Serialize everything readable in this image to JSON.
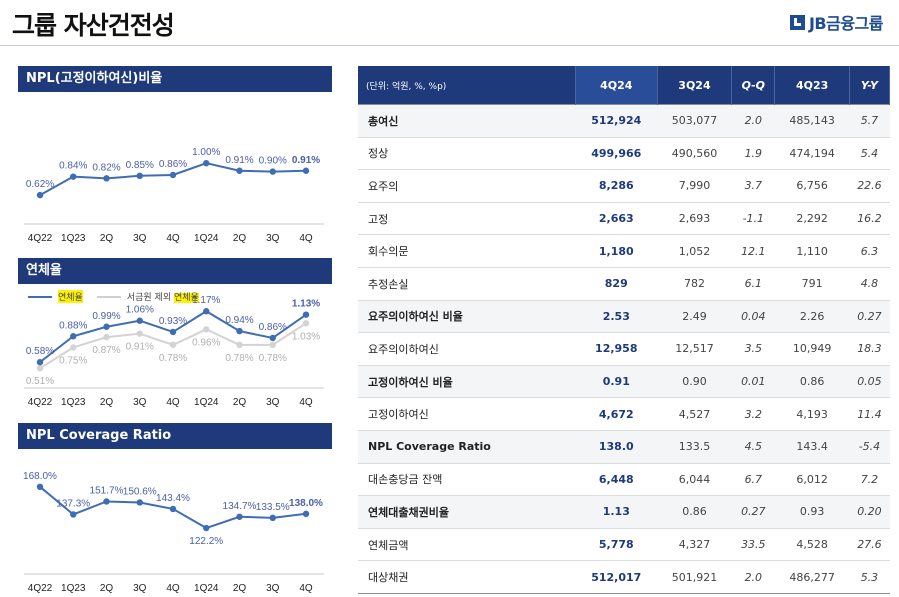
{
  "page": {
    "title": "그룹 자산건전성",
    "logo": "JB금융그룹"
  },
  "sections": {
    "npl": "NPL(고정이하여신)비율",
    "delinq": "연체율",
    "coverage": "NPL Coverage Ratio"
  },
  "legend": {
    "series1": "연체율",
    "series2_prefix": "서금원 제외 ",
    "series2_hl": "연체율"
  },
  "chart_data": [
    {
      "type": "line",
      "categories": [
        "4Q22",
        "1Q23",
        "2Q",
        "3Q",
        "4Q",
        "1Q24",
        "2Q",
        "3Q",
        "4Q"
      ],
      "series": [
        {
          "values": [
            0.62,
            0.84,
            0.82,
            0.85,
            0.86,
            1.0,
            0.91,
            0.9,
            0.91
          ]
        }
      ],
      "labels": [
        "0.62%",
        "0.84%",
        "0.82%",
        "0.85%",
        "0.86%",
        "1.00%",
        "0.91%",
        "0.90%",
        "0.91%"
      ],
      "ylim": [
        0.3,
        1.3
      ],
      "color": "#3e6db6"
    },
    {
      "type": "line",
      "categories": [
        "4Q22",
        "1Q23",
        "2Q",
        "3Q",
        "4Q",
        "1Q24",
        "2Q",
        "3Q",
        "4Q"
      ],
      "series": [
        {
          "name": "연체율",
          "values": [
            0.58,
            0.88,
            0.99,
            1.06,
            0.93,
            1.17,
            0.94,
            0.86,
            1.13
          ],
          "labels": [
            "0.58%",
            "0.88%",
            "0.99%",
            "1.06%",
            "0.93%",
            "1.17%",
            "0.94%",
            "0.86%",
            "1.13%"
          ]
        },
        {
          "name": "서금원 제외 연체율",
          "values": [
            0.51,
            0.75,
            0.87,
            0.91,
            0.78,
            0.96,
            0.78,
            0.78,
            1.03
          ],
          "labels": [
            "0.51%",
            "0.75%",
            "0.87%",
            "0.91%",
            "0.78%",
            "0.96%",
            "0.78%",
            "0.78%",
            "1.03%"
          ]
        }
      ],
      "ylim": [
        0.35,
        1.3
      ],
      "colors": [
        "#3e6db6",
        "#d3d3d3"
      ]
    },
    {
      "type": "line",
      "categories": [
        "4Q22",
        "1Q23",
        "2Q",
        "3Q",
        "4Q",
        "1Q24",
        "2Q",
        "3Q",
        "4Q"
      ],
      "series": [
        {
          "values": [
            168.0,
            137.3,
            151.7,
            150.6,
            143.4,
            122.2,
            134.7,
            133.5,
            138.0
          ]
        }
      ],
      "labels": [
        "168.0%",
        "137.3%",
        "151.7%",
        "150.6%",
        "143.4%",
        "122.2%",
        "134.7%",
        "133.5%",
        "138.0%"
      ],
      "ylim": [
        80,
        200
      ],
      "color": "#3e6db6"
    }
  ],
  "table": {
    "headers": [
      "(단위: 억원, %, %p)",
      "4Q24",
      "3Q24",
      "Q-Q",
      "4Q23",
      "Y-Y"
    ],
    "rows": [
      [
        "총여신",
        "512,924",
        "503,077",
        "2.0",
        "485,143",
        "5.7"
      ],
      [
        "정상",
        "499,966",
        "490,560",
        "1.9",
        "474,194",
        "5.4"
      ],
      [
        "요주의",
        "8,286",
        "7,990",
        "3.7",
        "6,756",
        "22.6"
      ],
      [
        "고정",
        "2,663",
        "2,693",
        "-1.1",
        "2,292",
        "16.2"
      ],
      [
        "회수의문",
        "1,180",
        "1,052",
        "12.1",
        "1,110",
        "6.3"
      ],
      [
        "추정손실",
        "829",
        "782",
        "6.1",
        "791",
        "4.8"
      ],
      [
        "요주의이하여신 비율",
        "2.53",
        "2.49",
        "0.04",
        "2.26",
        "0.27"
      ],
      [
        "요주의이하여신",
        "12,958",
        "12,517",
        "3.5",
        "10,949",
        "18.3"
      ],
      [
        "고정이하여신 비율",
        "0.91",
        "0.90",
        "0.01",
        "0.86",
        "0.05"
      ],
      [
        "고정이하여신",
        "4,672",
        "4,527",
        "3.2",
        "4,193",
        "11.4"
      ],
      [
        "NPL Coverage Ratio",
        "138.0",
        "133.5",
        "4.5",
        "143.4",
        "-5.4"
      ],
      [
        "대손충당금 잔액",
        "6,448",
        "6,044",
        "6.7",
        "6,012",
        "7.2"
      ],
      [
        "연체대출채권비율",
        "1.13",
        "0.86",
        "0.27",
        "0.93",
        "0.20"
      ],
      [
        "연체금액",
        "5,778",
        "4,327",
        "33.5",
        "4,528",
        "27.6"
      ],
      [
        "대상채권",
        "512,017",
        "501,921",
        "2.0",
        "486,277",
        "5.3"
      ]
    ]
  }
}
